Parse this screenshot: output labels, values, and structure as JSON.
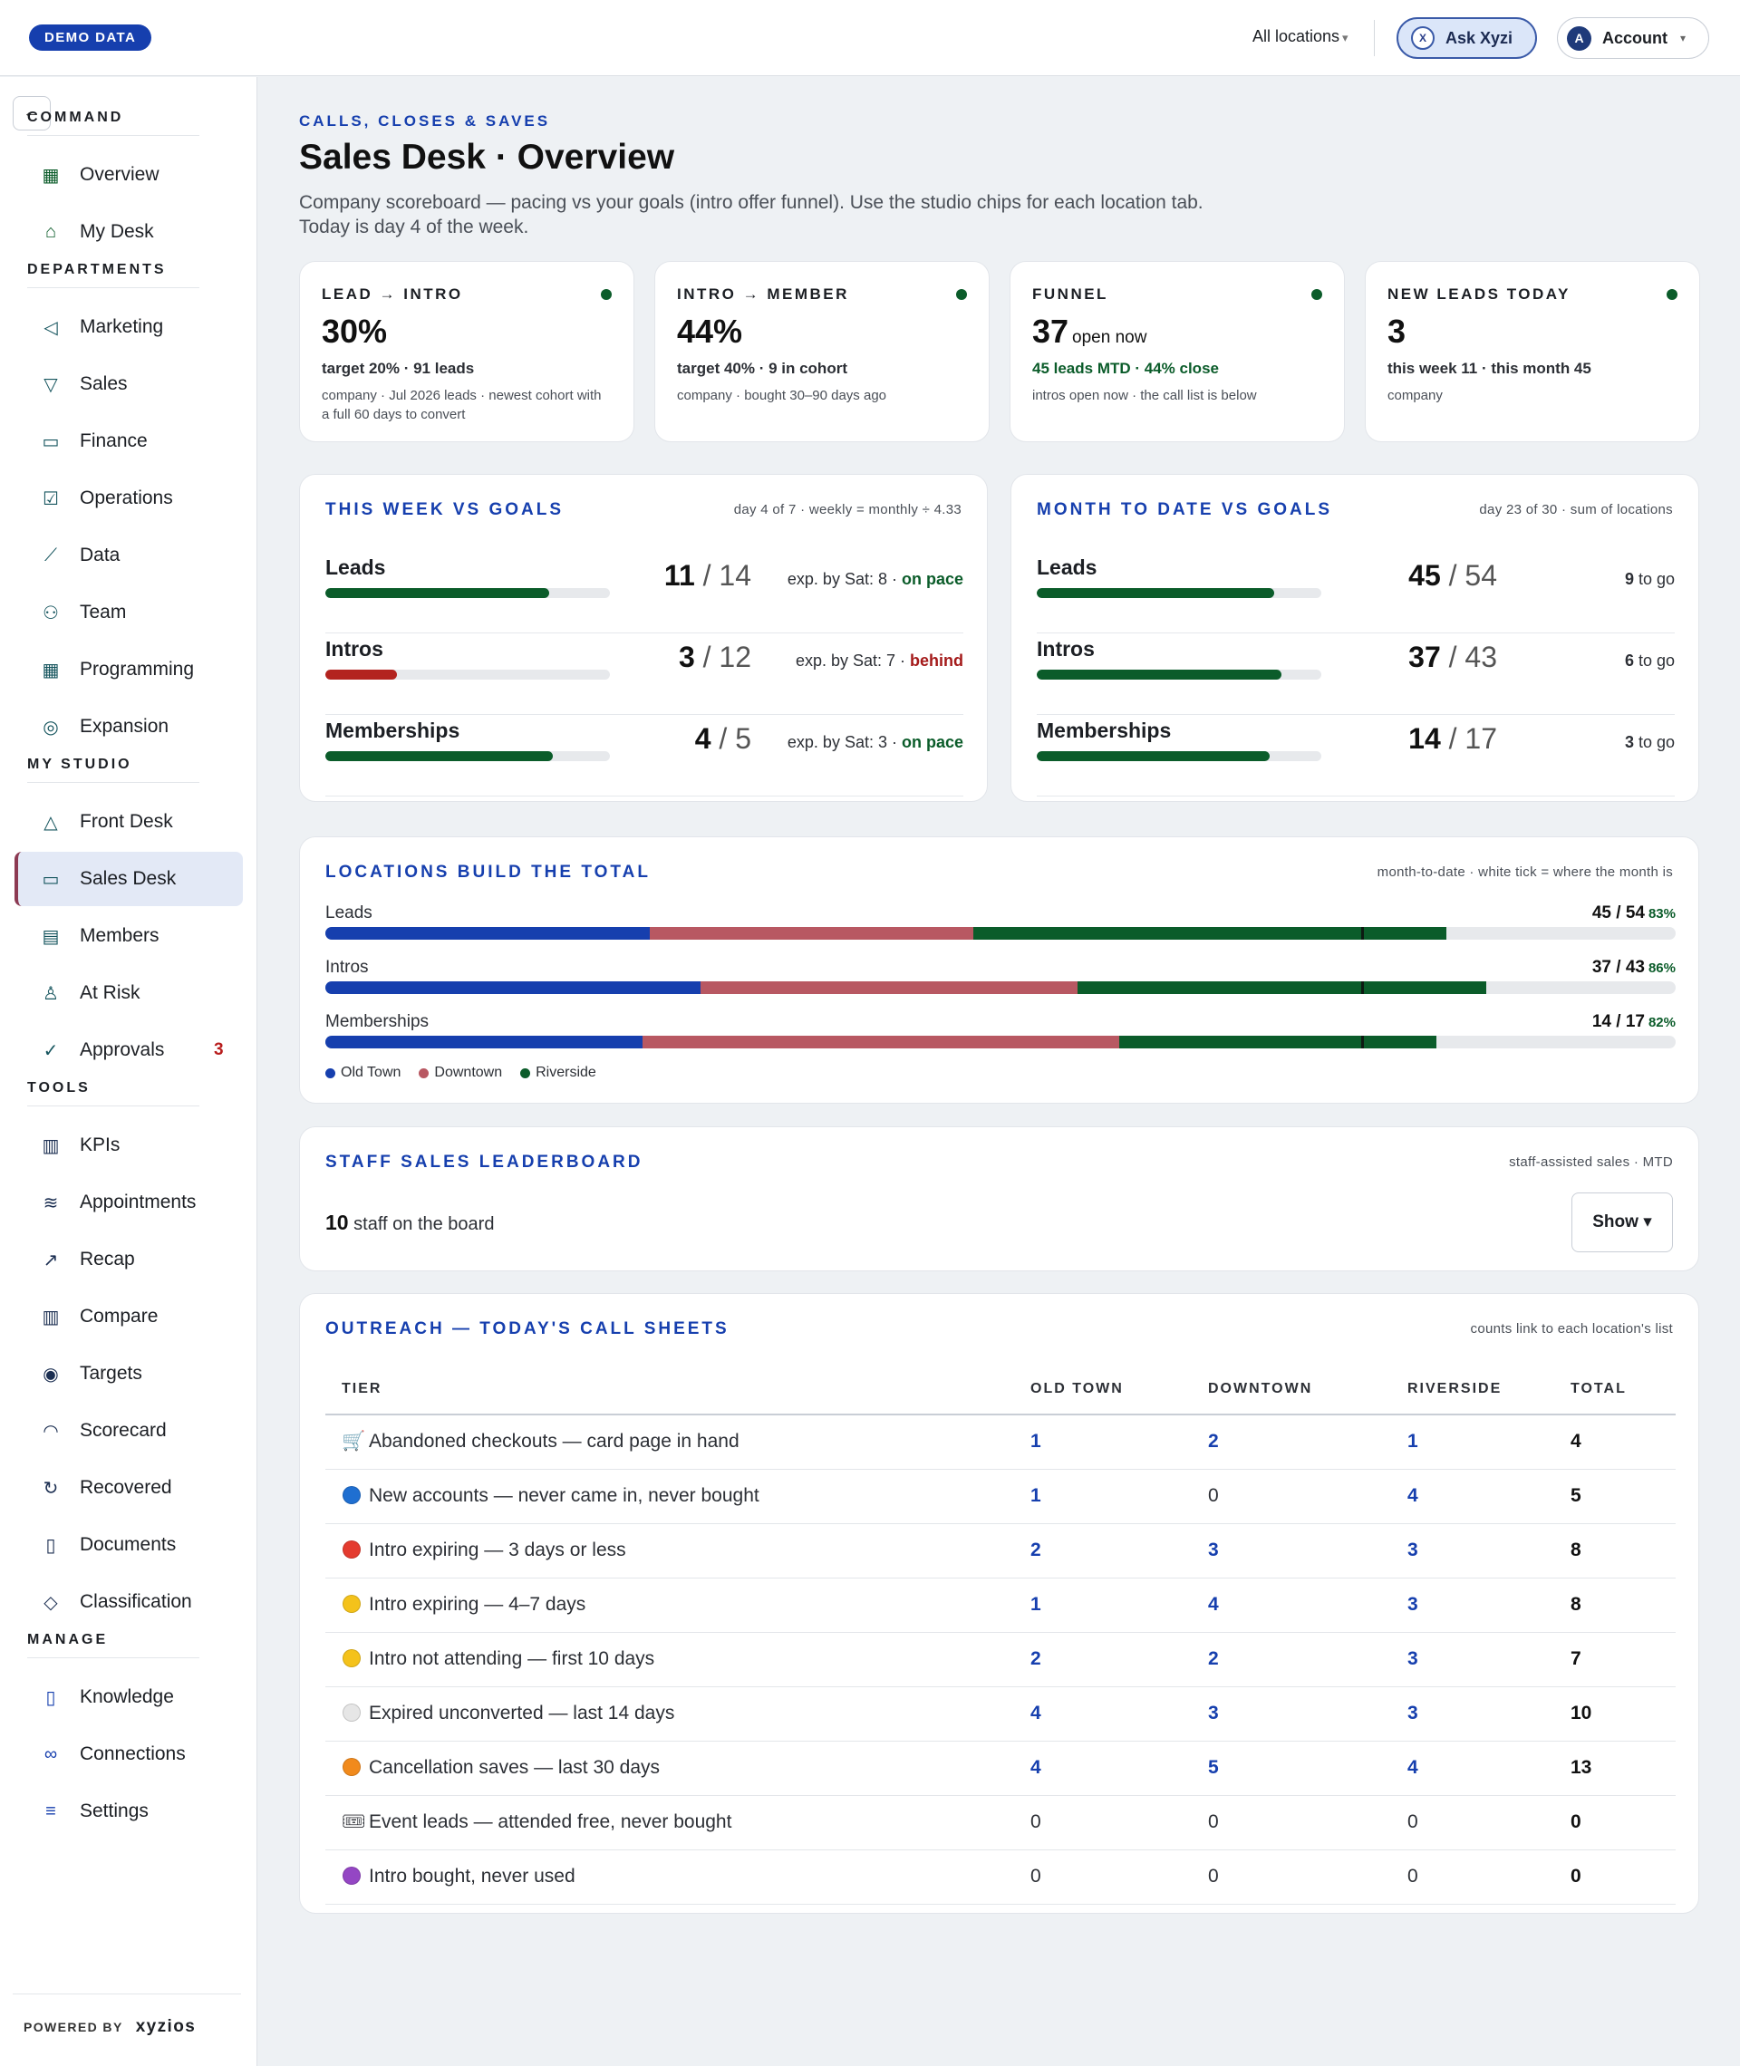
{
  "topbar": {
    "demo_badge": "DEMO DATA",
    "location_select": "All locations",
    "ask_button": "Ask Xyzi",
    "ask_logo": "X",
    "account_button": "Account",
    "account_avatar": "A"
  },
  "sidebar": {
    "sections": [
      {
        "label": "COMMAND",
        "items": [
          {
            "label": "Overview",
            "icon": "grid-icon"
          },
          {
            "label": "My Desk",
            "icon": "inbox-icon"
          }
        ]
      },
      {
        "label": "DEPARTMENTS",
        "items": [
          {
            "label": "Marketing",
            "icon": "megaphone-icon"
          },
          {
            "label": "Sales",
            "icon": "funnel-icon"
          },
          {
            "label": "Finance",
            "icon": "cash-icon"
          },
          {
            "label": "Operations",
            "icon": "clipboard-icon"
          },
          {
            "label": "Data",
            "icon": "line-chart-icon"
          },
          {
            "label": "Team",
            "icon": "people-icon"
          },
          {
            "label": "Programming",
            "icon": "calendar-icon"
          },
          {
            "label": "Expansion",
            "icon": "compass-icon"
          }
        ]
      },
      {
        "label": "MY STUDIO",
        "items": [
          {
            "label": "Front Desk",
            "icon": "desk-bell-icon"
          },
          {
            "label": "Sales Desk",
            "icon": "chat-icon",
            "active": true
          },
          {
            "label": "Members",
            "icon": "id-card-icon"
          },
          {
            "label": "At Risk",
            "icon": "user-alert-icon"
          },
          {
            "label": "Approvals",
            "icon": "check-circle-icon",
            "badge": "3"
          }
        ]
      },
      {
        "label": "TOOLS",
        "items": [
          {
            "label": "KPIs",
            "icon": "bar-chart-icon"
          },
          {
            "label": "Appointments",
            "icon": "layers-icon"
          },
          {
            "label": "Recap",
            "icon": "trend-icon"
          },
          {
            "label": "Compare",
            "icon": "columns-icon"
          },
          {
            "label": "Targets",
            "icon": "target-icon"
          },
          {
            "label": "Scorecard",
            "icon": "gauge-icon"
          },
          {
            "label": "Recovered",
            "icon": "recover-icon"
          },
          {
            "label": "Documents",
            "icon": "document-icon"
          },
          {
            "label": "Classification",
            "icon": "tag-icon"
          }
        ]
      },
      {
        "label": "MANAGE",
        "items": [
          {
            "label": "Knowledge",
            "icon": "book-icon"
          },
          {
            "label": "Connections",
            "icon": "link-icon"
          },
          {
            "label": "Settings",
            "icon": "sliders-icon"
          }
        ]
      }
    ],
    "powered_by": "POWERED BY",
    "brand": "xyzios"
  },
  "header": {
    "eyebrow": "CALLS, CLOSES & SAVES",
    "title": "Sales Desk · Overview",
    "subtitle": "Company scoreboard — pacing vs your goals (intro offer funnel). Use the studio chips for each location tab. Today is day 4 of the week."
  },
  "kpis": [
    {
      "label": "LEAD → INTRO",
      "value": "30%",
      "value_suffix": "",
      "line": "target 20% · 91 leads",
      "line_color": "default",
      "note": "company · Jul 2026 leads · newest cohort with a full 60 days to convert",
      "status_color": "#0b5c2a"
    },
    {
      "label": "INTRO → MEMBER",
      "value": "44%",
      "value_suffix": "",
      "line": "target 40% · 9 in cohort",
      "line_color": "default",
      "note": "company · bought 30–90 days ago",
      "status_color": "#0b5c2a"
    },
    {
      "label": "FUNNEL",
      "value": "37",
      "value_suffix": "open now",
      "line": "45 leads MTD · 44% close",
      "line_color": "green",
      "note": "intros open now · the call list is below",
      "status_color": "#0b5c2a"
    },
    {
      "label": "NEW LEADS TODAY",
      "value": "3",
      "value_suffix": "",
      "line": "this week 11 · this month 45",
      "line_color": "default",
      "note": "company",
      "status_color": "#0b5c2a"
    }
  ],
  "week_goals": {
    "title": "THIS WEEK VS GOALS",
    "note": "day 4 of 7 · weekly = monthly ÷ 4.33",
    "rows": [
      {
        "name": "Leads",
        "actual": "11",
        "goal": "14",
        "progress": 0.786,
        "exp_text": "exp. by Sat: 8 · ",
        "status": "on pace",
        "status_kind": "ok",
        "bar_color": "#0b5c2a"
      },
      {
        "name": "Intros",
        "actual": "3",
        "goal": "12",
        "progress": 0.25,
        "exp_text": "exp. by Sat: 7 · ",
        "status": "behind",
        "status_kind": "bad",
        "bar_color": "#b3231f"
      },
      {
        "name": "Memberships",
        "actual": "4",
        "goal": "5",
        "progress": 0.8,
        "exp_text": "exp. by Sat: 3 · ",
        "status": "on pace",
        "status_kind": "ok",
        "bar_color": "#0b5c2a"
      }
    ]
  },
  "month_goals": {
    "title": "MONTH TO DATE VS GOALS",
    "note": "day 23 of 30 · sum of locations",
    "rows": [
      {
        "name": "Leads",
        "actual": "45",
        "goal": "54",
        "progress": 0.833,
        "to_go": "9",
        "to_go_label": " to go",
        "bar_color": "#0b5c2a"
      },
      {
        "name": "Intros",
        "actual": "37",
        "goal": "43",
        "progress": 0.86,
        "to_go": "6",
        "to_go_label": " to go",
        "bar_color": "#0b5c2a"
      },
      {
        "name": "Memberships",
        "actual": "14",
        "goal": "17",
        "progress": 0.82,
        "to_go": "3",
        "to_go_label": " to go",
        "bar_color": "#0b5c2a"
      }
    ]
  },
  "locations": {
    "title": "LOCATIONS BUILD THE TOTAL",
    "note": "month-to-date · white tick = where the month is",
    "month_progress": 0.767,
    "legend": [
      {
        "name": "Old Town",
        "color": "#163fae"
      },
      {
        "name": "Downtown",
        "color": "#b85862"
      },
      {
        "name": "Riverside",
        "color": "#0b5c2a"
      }
    ],
    "rows": [
      {
        "label": "Leads",
        "total": "45 / 54",
        "pct": "83%",
        "shares": [
          0.24,
          0.24,
          0.35
        ]
      },
      {
        "label": "Intros",
        "total": "37 / 43",
        "pct": "86%",
        "shares": [
          0.278,
          0.279,
          0.303
        ]
      },
      {
        "label": "Memberships",
        "total": "14 / 17",
        "pct": "82%",
        "shares": [
          0.235,
          0.353,
          0.235
        ]
      }
    ]
  },
  "leaderboard": {
    "title": "STAFF SALES LEADERBOARD",
    "note": "staff-assisted sales · MTD",
    "count": "10",
    "count_label": " staff on the board",
    "show_button": "Show ▾"
  },
  "outreach": {
    "title": "OUTREACH — TODAY'S CALL SHEETS",
    "note": "counts link to each location's list",
    "columns": [
      "TIER",
      "OLD TOWN",
      "DOWNTOWN",
      "RIVERSIDE",
      "TOTAL"
    ],
    "rows": [
      {
        "icon": "cart-icon",
        "glyph": "🛒",
        "tier": "Abandoned checkouts — card page in hand",
        "old_town": "1",
        "downtown": "2",
        "riverside": "1",
        "total": "4"
      },
      {
        "icon": "blue-circle-icon",
        "dot": "#1f6fd1",
        "tier": "New accounts — never came in, never bought",
        "old_town": "1",
        "downtown": "0",
        "riverside": "4",
        "total": "5"
      },
      {
        "icon": "red-circle-icon",
        "dot": "#e43b2f",
        "tier": "Intro expiring — 3 days or less",
        "old_town": "2",
        "downtown": "3",
        "riverside": "3",
        "total": "8"
      },
      {
        "icon": "yellow-circle-icon",
        "dot": "#f4c21b",
        "tier": "Intro expiring — 4–7 days",
        "old_town": "1",
        "downtown": "4",
        "riverside": "3",
        "total": "8"
      },
      {
        "icon": "yellow-circle-icon",
        "dot": "#f4c21b",
        "tier": "Intro not attending — first 10 days",
        "old_town": "2",
        "downtown": "2",
        "riverside": "3",
        "total": "7"
      },
      {
        "icon": "white-circle-icon",
        "dot": "#e6e6e6",
        "tier": "Expired unconverted — last 14 days",
        "old_town": "4",
        "downtown": "3",
        "riverside": "3",
        "total": "10"
      },
      {
        "icon": "orange-circle-icon",
        "dot": "#f18a1c",
        "tier": "Cancellation saves — last 30 days",
        "old_town": "4",
        "downtown": "5",
        "riverside": "4",
        "total": "13"
      },
      {
        "icon": "ticket-icon",
        "glyph": "🎟",
        "tier": "Event leads — attended free, never bought",
        "old_town": "0",
        "downtown": "0",
        "riverside": "0",
        "total": "0"
      },
      {
        "icon": "purple-circle-icon",
        "dot": "#9446c4",
        "tier": "Intro bought, never used",
        "old_town": "0",
        "downtown": "0",
        "riverside": "0",
        "total": "0"
      }
    ]
  }
}
